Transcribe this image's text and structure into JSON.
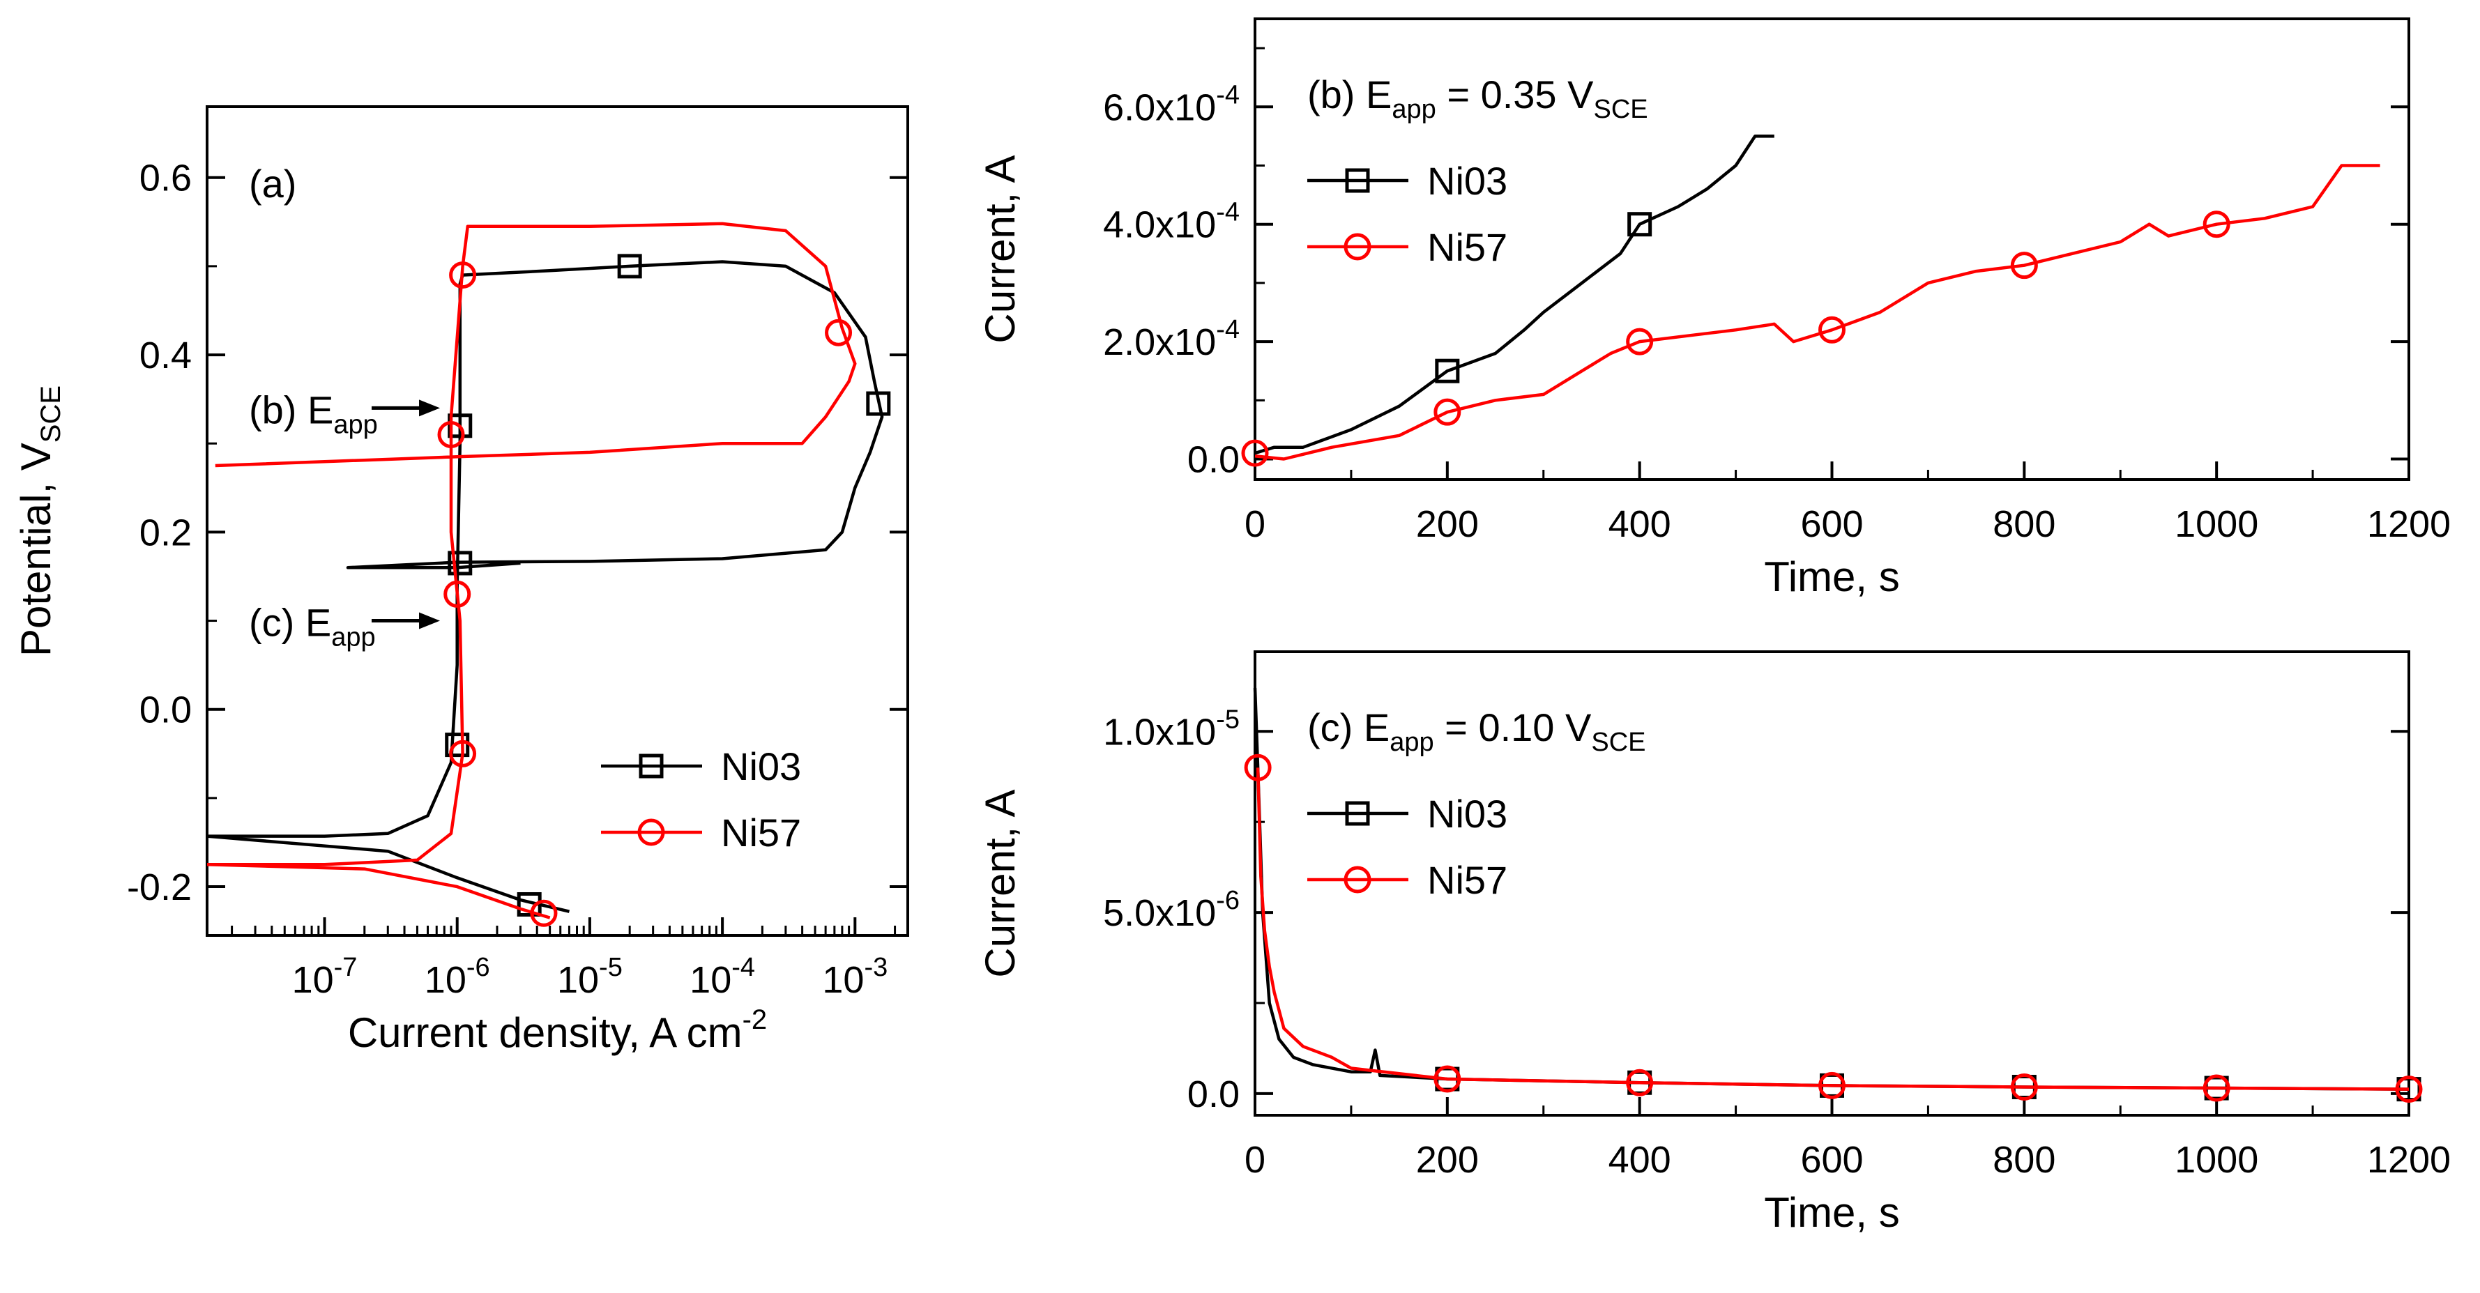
{
  "colors": {
    "Ni03": "#000000",
    "Ni57": "#ff0000"
  },
  "chart_data": [
    {
      "id": "a",
      "type": "line",
      "scale": {
        "x": "log",
        "y": "linear"
      },
      "xlabel": "Current density, A cm",
      "xlabel_sup": "-2",
      "ylabel": "Potential, V",
      "ylabel_sub": "SCE",
      "xlim": [
        1.3e-08,
        0.0025
      ],
      "ylim": [
        -0.255,
        0.68
      ],
      "xticks": [
        1e-07,
        1e-06,
        1e-05,
        0.0001,
        0.001
      ],
      "xtick_labels": [
        {
          "base": "10",
          "exp": "-7"
        },
        {
          "base": "10",
          "exp": "-6"
        },
        {
          "base": "10",
          "exp": "-5"
        },
        {
          "base": "10",
          "exp": "-4"
        },
        {
          "base": "10",
          "exp": "-3"
        }
      ],
      "yticks": [
        -0.2,
        0.0,
        0.2,
        0.4,
        0.6
      ],
      "ytick_labels": [
        "-0.2",
        "0.0",
        "0.2",
        "0.4",
        "0.6"
      ],
      "annotations": [
        {
          "text": "(a)"
        },
        {
          "text": "(b) E",
          "sub": "app",
          "arrow_to": [
            9e-07,
            0.34
          ]
        },
        {
          "text": "(c) E",
          "sub": "app",
          "arrow_to": [
            9e-07,
            0.1
          ]
        }
      ],
      "legend_placement": "bottom-right",
      "series": [
        {
          "name": "Ni03",
          "color": "#000000",
          "marker": "square",
          "points": [
            [
              1.3e-08,
              -0.143
            ],
            [
              1e-07,
              -0.143
            ],
            [
              3e-07,
              -0.14
            ],
            [
              6e-07,
              -0.12
            ],
            [
              9e-07,
              -0.06
            ],
            [
              1e-06,
              0.05
            ],
            [
              1e-06,
              0.14
            ],
            [
              1.05e-06,
              0.3
            ],
            [
              1.05e-06,
              0.48
            ],
            [
              1.1e-06,
              0.49
            ],
            [
              5e-06,
              0.495
            ],
            [
              2e-05,
              0.5
            ],
            [
              0.0001,
              0.505
            ],
            [
              0.0003,
              0.5
            ],
            [
              0.0007,
              0.47
            ],
            [
              0.0012,
              0.42
            ],
            [
              0.0014,
              0.37
            ],
            [
              0.0016,
              0.33
            ],
            [
              0.0013,
              0.29
            ],
            [
              0.001,
              0.25
            ],
            [
              0.0008,
              0.2
            ],
            [
              0.0006,
              0.18
            ],
            [
              0.0001,
              0.17
            ],
            [
              1e-05,
              0.167
            ],
            [
              1e-06,
              0.166
            ],
            [
              1.5e-07,
              0.16
            ],
            [
              1e-06,
              0.16
            ],
            [
              3e-06,
              0.165
            ]
          ],
          "branch": [
            [
              1.3e-08,
              -0.143
            ],
            [
              3e-07,
              -0.16
            ],
            [
              1e-06,
              -0.19
            ],
            [
              3e-06,
              -0.215
            ],
            [
              7e-06,
              -0.228
            ]
          ],
          "markers": [
            [
              1e-06,
              -0.04
            ],
            [
              1.05e-06,
              0.165
            ],
            [
              1.05e-06,
              0.32
            ],
            [
              2e-05,
              0.5
            ],
            [
              0.0015,
              0.345
            ],
            [
              3.5e-06,
              -0.22
            ]
          ]
        },
        {
          "name": "Ni57",
          "color": "#ff0000",
          "marker": "circle",
          "points": [
            [
              1.3e-08,
              -0.175
            ],
            [
              1e-07,
              -0.175
            ],
            [
              5e-07,
              -0.17
            ],
            [
              9e-07,
              -0.14
            ],
            [
              1.1e-06,
              -0.05
            ],
            [
              1.05e-06,
              0.1
            ],
            [
              9e-07,
              0.2
            ],
            [
              9e-07,
              0.33
            ],
            [
              1.1e-06,
              0.5
            ],
            [
              1.2e-06,
              0.545
            ],
            [
              1e-05,
              0.545
            ],
            [
              0.0001,
              0.548
            ],
            [
              0.0003,
              0.54
            ],
            [
              0.0006,
              0.5
            ],
            [
              0.0008,
              0.43
            ],
            [
              0.001,
              0.39
            ],
            [
              0.0009,
              0.37
            ],
            [
              0.0006,
              0.33
            ],
            [
              0.0004,
              0.3
            ],
            [
              0.0001,
              0.3
            ],
            [
              1e-05,
              0.29
            ],
            [
              1e-06,
              0.285
            ],
            [
              1.5e-08,
              0.275
            ]
          ],
          "branch": [
            [
              1.3e-08,
              -0.175
            ],
            [
              2e-07,
              -0.18
            ],
            [
              1e-06,
              -0.2
            ],
            [
              3e-06,
              -0.225
            ],
            [
              5e-06,
              -0.235
            ]
          ],
          "markers": [
            [
              1.1e-06,
              -0.05
            ],
            [
              1e-06,
              0.13
            ],
            [
              9e-07,
              0.31
            ],
            [
              1.1e-06,
              0.49
            ],
            [
              0.00075,
              0.425
            ],
            [
              4.5e-06,
              -0.23
            ]
          ]
        }
      ]
    },
    {
      "id": "b",
      "type": "line",
      "xlabel": "Time, s",
      "ylabel": "Current, A",
      "xlim": [
        0,
        1200
      ],
      "ylim": [
        -3.5e-05,
        0.00075
      ],
      "xticks": [
        0,
        200,
        400,
        600,
        800,
        1000,
        1200
      ],
      "xtick_labels": [
        "0",
        "200",
        "400",
        "600",
        "800",
        "1000",
        "1200"
      ],
      "yticks": [
        0,
        0.0002,
        0.0004,
        0.0006
      ],
      "ytick_labels": [
        {
          "base": "0.0",
          "exp": ""
        },
        {
          "base": "2.0x10",
          "exp": "-4"
        },
        {
          "base": "4.0x10",
          "exp": "-4"
        },
        {
          "base": "6.0x10",
          "exp": "-4"
        }
      ],
      "title": {
        "text": "(b) E",
        "sub": "app",
        "rest": " = 0.35 V",
        "sub2": "SCE"
      },
      "legend_placement": "top-left",
      "series": [
        {
          "name": "Ni03",
          "color": "#000000",
          "marker": "square",
          "points": [
            [
              0,
              1e-05
            ],
            [
              20,
              2e-05
            ],
            [
              50,
              2e-05
            ],
            [
              100,
              5e-05
            ],
            [
              150,
              9e-05
            ],
            [
              200,
              0.00015
            ],
            [
              250,
              0.00018
            ],
            [
              280,
              0.00022
            ],
            [
              300,
              0.00025
            ],
            [
              340,
              0.0003
            ],
            [
              380,
              0.00035
            ],
            [
              400,
              0.0004
            ],
            [
              440,
              0.00043
            ],
            [
              470,
              0.00046
            ],
            [
              500,
              0.0005
            ],
            [
              520,
              0.00055
            ],
            [
              540,
              0.00055
            ]
          ],
          "markers": [
            [
              200,
              0.00015
            ],
            [
              400,
              0.0004
            ]
          ]
        },
        {
          "name": "Ni57",
          "color": "#ff0000",
          "marker": "circle",
          "points": [
            [
              0,
              5e-06
            ],
            [
              30,
              0
            ],
            [
              80,
              2e-05
            ],
            [
              150,
              4e-05
            ],
            [
              200,
              8e-05
            ],
            [
              250,
              0.0001
            ],
            [
              300,
              0.00011
            ],
            [
              340,
              0.00015
            ],
            [
              370,
              0.00018
            ],
            [
              400,
              0.0002
            ],
            [
              450,
              0.00021
            ],
            [
              500,
              0.00022
            ],
            [
              540,
              0.00023
            ],
            [
              560,
              0.0002
            ],
            [
              600,
              0.00022
            ],
            [
              650,
              0.00025
            ],
            [
              700,
              0.0003
            ],
            [
              750,
              0.00032
            ],
            [
              800,
              0.00033
            ],
            [
              850,
              0.00035
            ],
            [
              900,
              0.00037
            ],
            [
              930,
              0.0004
            ],
            [
              950,
              0.00038
            ],
            [
              1000,
              0.0004
            ],
            [
              1050,
              0.00041
            ],
            [
              1100,
              0.00043
            ],
            [
              1130,
              0.0005
            ],
            [
              1170,
              0.0005
            ]
          ],
          "markers": [
            [
              0,
              1e-05
            ],
            [
              200,
              8e-05
            ],
            [
              400,
              0.0002
            ],
            [
              600,
              0.00022
            ],
            [
              800,
              0.00033
            ],
            [
              1000,
              0.0004
            ]
          ]
        }
      ]
    },
    {
      "id": "c",
      "type": "line",
      "xlabel": "Time, s",
      "ylabel": "Current, A",
      "xlim": [
        0,
        1200
      ],
      "ylim": [
        -6e-07,
        1.22e-05
      ],
      "xticks": [
        0,
        200,
        400,
        600,
        800,
        1000,
        1200
      ],
      "xtick_labels": [
        "0",
        "200",
        "400",
        "600",
        "800",
        "1000",
        "1200"
      ],
      "yticks": [
        0,
        5e-06,
        1e-05
      ],
      "ytick_labels": [
        {
          "base": "0.0",
          "exp": ""
        },
        {
          "base": "5.0x10",
          "exp": "-6"
        },
        {
          "base": "1.0x10",
          "exp": "-5"
        }
      ],
      "title": {
        "text": "(c) E",
        "sub": "app",
        "rest": " = 0.10 V",
        "sub2": "SCE"
      },
      "legend_placement": "top-left",
      "series": [
        {
          "name": "Ni03",
          "color": "#000000",
          "marker": "square",
          "points": [
            [
              0,
              1.12e-05
            ],
            [
              3,
              9e-06
            ],
            [
              8,
              5e-06
            ],
            [
              15,
              2.5e-06
            ],
            [
              25,
              1.5e-06
            ],
            [
              40,
              1e-06
            ],
            [
              60,
              8e-07
            ],
            [
              100,
              6e-07
            ],
            [
              120,
              6e-07
            ],
            [
              125,
              1.2e-06
            ],
            [
              130,
              5e-07
            ],
            [
              200,
              4e-07
            ],
            [
              400,
              3e-07
            ],
            [
              600,
              2.2e-07
            ],
            [
              800,
              1.8e-07
            ],
            [
              1000,
              1.5e-07
            ],
            [
              1200,
              1.2e-07
            ]
          ],
          "markers": [
            [
              200,
              4e-07
            ],
            [
              400,
              3e-07
            ],
            [
              600,
              2.2e-07
            ],
            [
              800,
              1.8e-07
            ],
            [
              1000,
              1.5e-07
            ],
            [
              1200,
              1.2e-07
            ]
          ]
        },
        {
          "name": "Ni57",
          "color": "#ff0000",
          "marker": "circle",
          "points": [
            [
              3,
              9e-06
            ],
            [
              6,
              6e-06
            ],
            [
              10,
              4.5e-06
            ],
            [
              15,
              3.5e-06
            ],
            [
              20,
              2.8e-06
            ],
            [
              30,
              1.8e-06
            ],
            [
              50,
              1.3e-06
            ],
            [
              80,
              1e-06
            ],
            [
              100,
              7e-07
            ],
            [
              200,
              4e-07
            ],
            [
              400,
              3e-07
            ],
            [
              600,
              2.2e-07
            ],
            [
              800,
              1.8e-07
            ],
            [
              1000,
              1.5e-07
            ],
            [
              1200,
              1.2e-07
            ]
          ],
          "markers": [
            [
              3,
              9e-06
            ],
            [
              200,
              4e-07
            ],
            [
              400,
              3e-07
            ],
            [
              600,
              2.2e-07
            ],
            [
              800,
              1.8e-07
            ],
            [
              1000,
              1.5e-07
            ],
            [
              1200,
              1.2e-07
            ]
          ]
        }
      ]
    }
  ]
}
